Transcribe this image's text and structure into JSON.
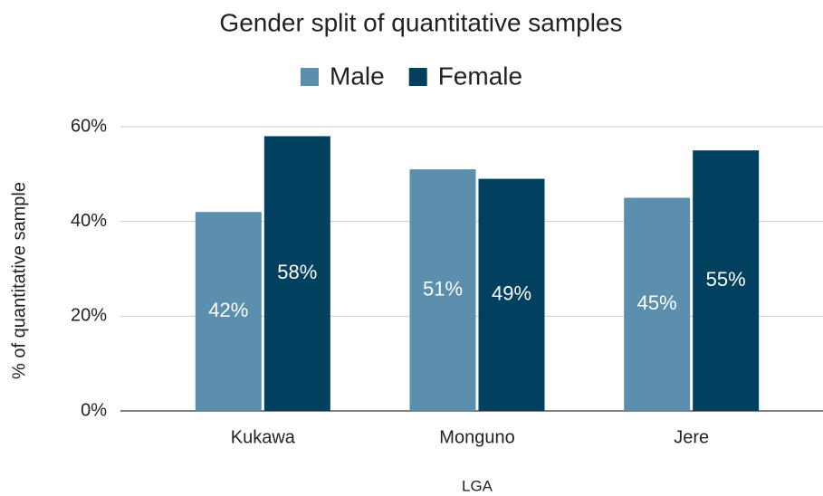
{
  "chart_data": {
    "type": "bar",
    "title": "Gender split of quantitative samples",
    "x_label": "LGA",
    "y_label": "% of quantitative sample",
    "categories": [
      "Kukawa",
      "Monguno",
      "Jere"
    ],
    "series": [
      {
        "name": "Male",
        "color": "#5b8fad",
        "values": [
          42,
          51,
          45
        ],
        "value_labels": [
          "42%",
          "51%",
          "45%"
        ]
      },
      {
        "name": "Female",
        "color": "#01405e",
        "values": [
          58,
          49,
          55
        ],
        "value_labels": [
          "58%",
          "49%",
          "55%"
        ]
      }
    ],
    "ylim": [
      0,
      60
    ],
    "yticks": [
      {
        "value": 0,
        "label": "0%"
      },
      {
        "value": 20,
        "label": "20%"
      },
      {
        "value": 40,
        "label": "40%"
      },
      {
        "value": 60,
        "label": "60%"
      }
    ],
    "grid": true,
    "legend": "top"
  }
}
